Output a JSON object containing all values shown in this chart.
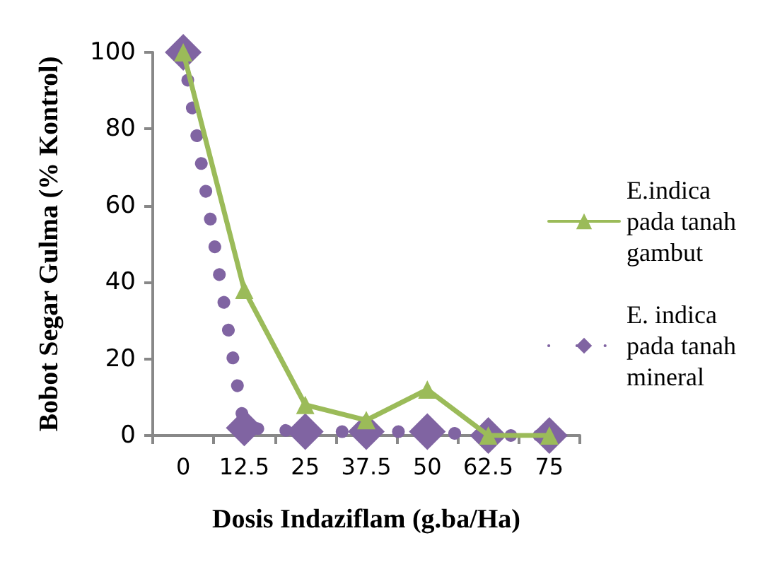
{
  "chart_data": {
    "type": "line",
    "xlabel": "Dosis Indaziflam (g.ba/Ha)",
    "ylabel": "Bobot Segar Gulma (% Kontrol)",
    "categories": [
      "0",
      "12.5",
      "25",
      "37.5",
      "50",
      "62.5",
      "75"
    ],
    "series": [
      {
        "name": "E.indica pada tanah gambut",
        "color": "#9bbb59",
        "values": [
          100,
          38,
          8,
          4,
          12,
          0,
          0
        ],
        "marker": "triangle",
        "line_style": "solid"
      },
      {
        "name": "E. indica pada tanah mineral",
        "color": "#8064a2",
        "values": [
          100,
          2,
          1,
          1,
          1,
          0,
          0
        ],
        "marker": "diamond",
        "line_style": "dotted"
      }
    ],
    "ylim": [
      0,
      100
    ],
    "yticks": [
      0,
      20,
      40,
      60,
      80,
      100
    ],
    "grid": false,
    "legend": "right"
  }
}
